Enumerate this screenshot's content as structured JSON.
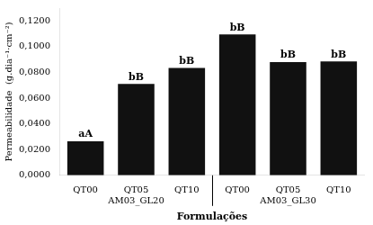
{
  "chart_data": {
    "type": "bar",
    "categories": [
      "QT00",
      "QT05",
      "QT10",
      "QT00",
      "QT05",
      "QT10"
    ],
    "groups": [
      "AM03_GL20",
      "AM03_GL30"
    ],
    "values": [
      0.0265,
      0.071,
      0.0835,
      0.1095,
      0.088,
      0.0885
    ],
    "annotations": [
      "aA",
      "bB",
      "bB",
      "bB",
      "bB",
      "bB"
    ],
    "color": "#111111",
    "xlabel": "Formulações",
    "ylabel": "Permeabilidade  (g.dia⁻¹·cm⁻²)",
    "ylim": [
      0,
      0.13
    ],
    "yticks": [
      {
        "value": 0.0,
        "label": "0,0000"
      },
      {
        "value": 0.02,
        "label": "0,0200"
      },
      {
        "value": 0.04,
        "label": "0,0400"
      },
      {
        "value": 0.06,
        "label": "0,0600"
      },
      {
        "value": 0.08,
        "label": "0,0800"
      },
      {
        "value": 0.1,
        "label": "0,1000"
      },
      {
        "value": 0.12,
        "label": "0,1200"
      }
    ],
    "grid": false
  }
}
